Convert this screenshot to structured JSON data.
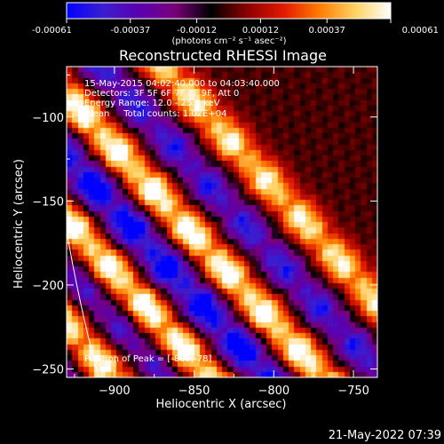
{
  "colorbar": {
    "tick_labels": [
      "-0.00061",
      "-0.00037",
      "-0.00012",
      "0.00012",
      "0.00037",
      "0.00061"
    ],
    "ticks": [
      -0.00061,
      -0.00037,
      -0.00012,
      0.00012,
      0.00037,
      0.00061
    ],
    "range": [
      -0.00061,
      0.00061
    ],
    "units": "(photons cm⁻² s⁻¹ asec⁻²)",
    "colormap": [
      "#0000ff",
      "#3a1fd0",
      "#5a00b0",
      "#7a007a",
      "#000000",
      "#8a0000",
      "#e01800",
      "#ff7a00",
      "#ffd060",
      "#ffffff"
    ]
  },
  "info": {
    "time": "15-May-2015 04:02:40.000 to 04:03:40.000",
    "detectors": "Detectors: 3F 5F 6F 7F 8F 9F, Att 0",
    "energy": "Energy Range: 12.0 - 25.0 keV",
    "clean": "Clean     Total counts: 1.02E+04",
    "peak": "Position of Peak = [-809,-78]"
  },
  "timestamp": "21-May-2022 07:39",
  "chart_data": {
    "type": "heatmap",
    "title": "Reconstructed RHESSI Image",
    "xlabel": "Heliocentric X (arcsec)",
    "ylabel": "Heliocentric Y (arcsec)",
    "xlim": [
      -930,
      -735
    ],
    "ylim": [
      -255,
      -70
    ],
    "x_ticks": [
      -900,
      -850,
      -800,
      -750
    ],
    "x_tick_labels": [
      "−900",
      "−850",
      "−800",
      "−750"
    ],
    "y_ticks": [
      -250,
      -200,
      -150,
      -100
    ],
    "y_tick_labels": [
      "−250",
      "−200",
      "−150",
      "−100"
    ],
    "limb_radius_arcsec": 945,
    "bands": [
      {
        "type": "trough",
        "offset": -140,
        "amplitude": -0.00061,
        "width": 20
      },
      {
        "type": "ridge",
        "offset": -106,
        "amplitude": 0.00055,
        "width": 12
      },
      {
        "type": "trough",
        "offset": -82,
        "amplitude": -0.0004,
        "width": 11
      },
      {
        "type": "ridge",
        "offset": -62,
        "amplitude": 0.00061,
        "width": 12
      },
      {
        "type": "trough",
        "offset": -36,
        "amplitude": -0.00061,
        "width": 14
      },
      {
        "type": "ridge",
        "offset": -12,
        "amplitude": 0.00061,
        "width": 12
      },
      {
        "type": "trough",
        "offset": 16,
        "amplitude": -0.00045,
        "width": 12
      },
      {
        "type": "ridge",
        "offset": 44,
        "amplitude": 0.0005,
        "width": 11
      }
    ]
  }
}
